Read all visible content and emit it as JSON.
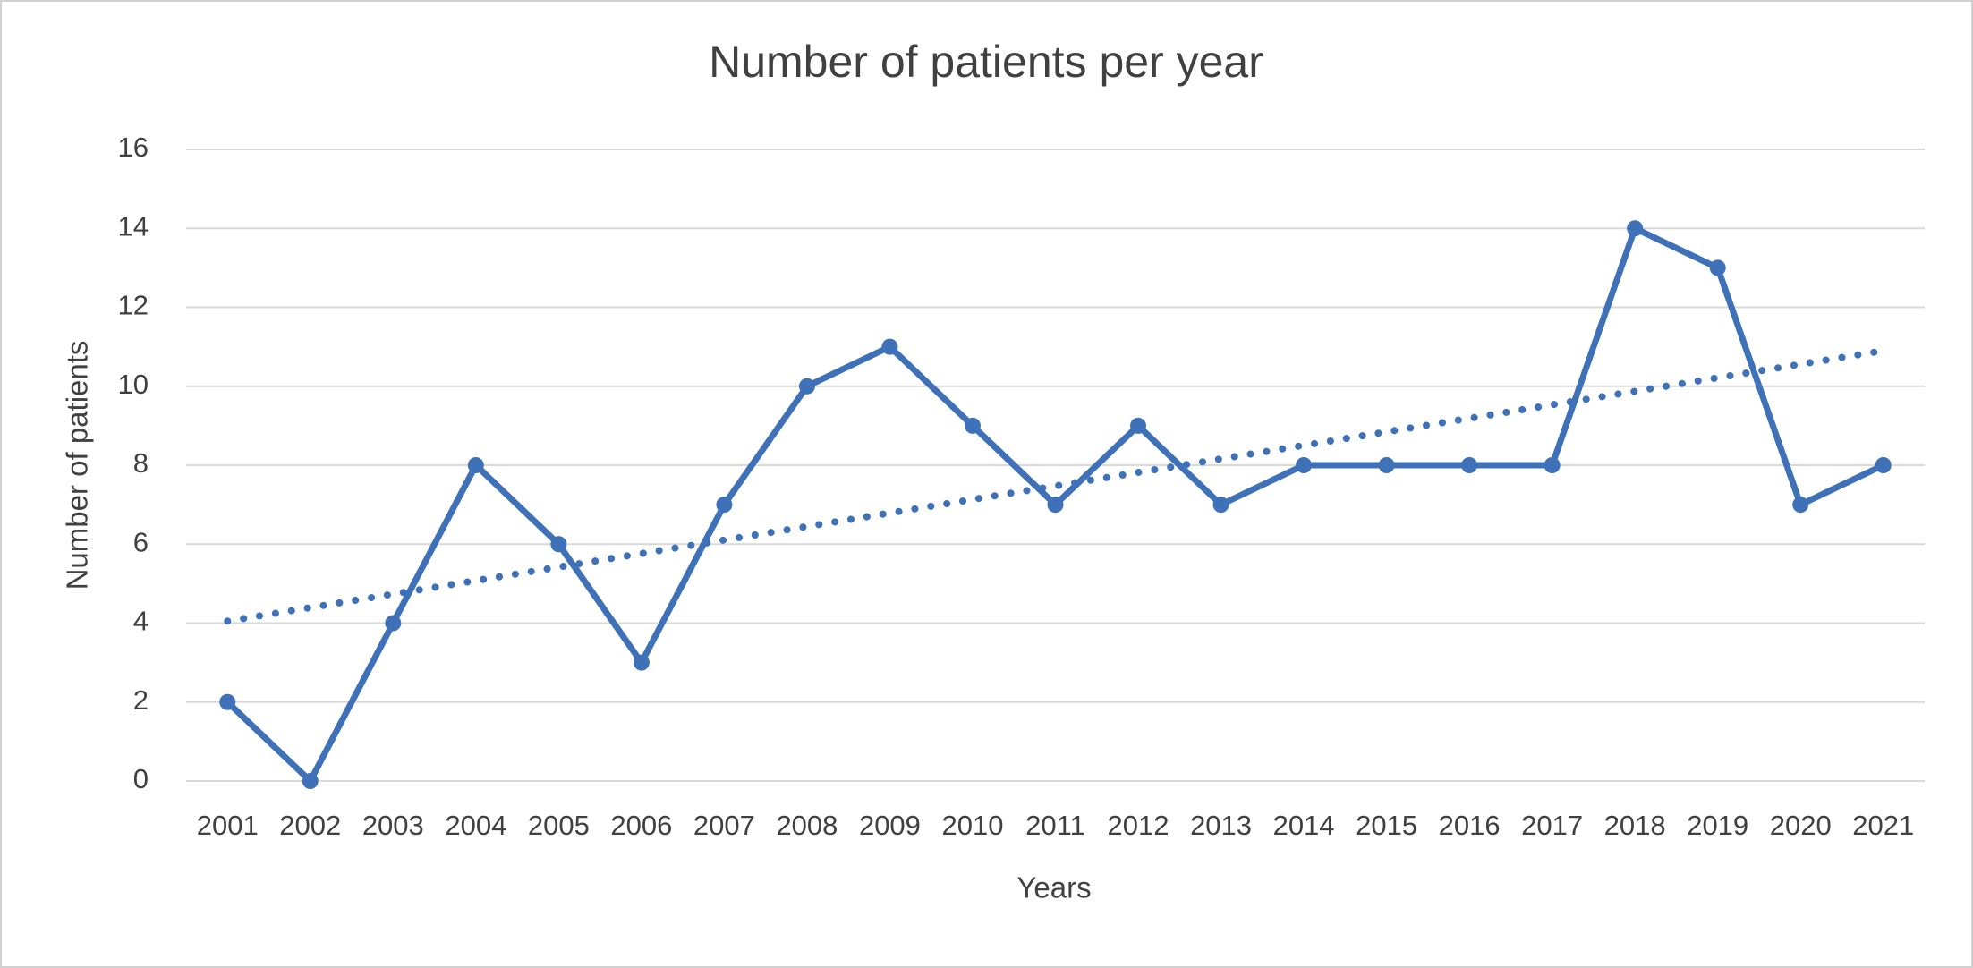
{
  "chart_data": {
    "type": "line",
    "title": "Number of  patients per year",
    "x_label": "Years",
    "y_label": "Number of patients",
    "categories": [
      "2001",
      "2002",
      "2003",
      "2004",
      "2005",
      "2006",
      "2007",
      "2008",
      "2009",
      "2010",
      "2011",
      "2012",
      "2013",
      "2014",
      "2015",
      "2016",
      "2017",
      "2018",
      "2019",
      "2020",
      "2021"
    ],
    "series": [
      {
        "color": "#3f71b8",
        "values": [
          2,
          0,
          4,
          8,
          6,
          3,
          7,
          10,
          11,
          9,
          7,
          9,
          7,
          8,
          8,
          8,
          8,
          14,
          13,
          7,
          8
        ]
      }
    ],
    "trendline": {
      "color": "#3f71b8",
      "style": "dotted",
      "values": [
        4.05,
        10.9
      ]
    },
    "ylim": [
      0,
      16
    ],
    "yticks": [
      0,
      2,
      4,
      6,
      8,
      10,
      12,
      14,
      16
    ],
    "grid": true
  }
}
